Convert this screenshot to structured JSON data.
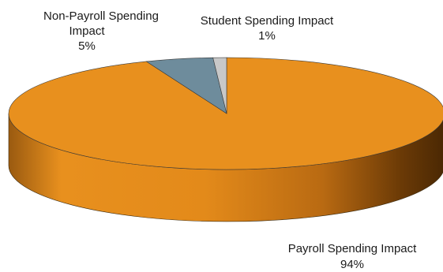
{
  "chart_data": {
    "type": "pie",
    "style": "3d",
    "title": "",
    "slices": [
      {
        "label": "Payroll Spending Impact",
        "value": 94,
        "value_label": "94%",
        "color": "#E8901E"
      },
      {
        "label": "Non-Payroll Spending Impact",
        "value": 5,
        "value_label": "5%",
        "color": "#6E8C9C"
      },
      {
        "label": "Student Spending Impact",
        "value": 1,
        "value_label": "1%",
        "color": "#C8C8C8"
      }
    ],
    "legend": "none"
  },
  "labels": {
    "payroll_line1": "Payroll Spending Impact",
    "payroll_line2": "94%",
    "nonpayroll_line1": "Non-Payroll Spending",
    "nonpayroll_line2": "Impact",
    "nonpayroll_line3": "5%",
    "student_line1": "Student Spending Impact",
    "student_line2": "1%"
  }
}
